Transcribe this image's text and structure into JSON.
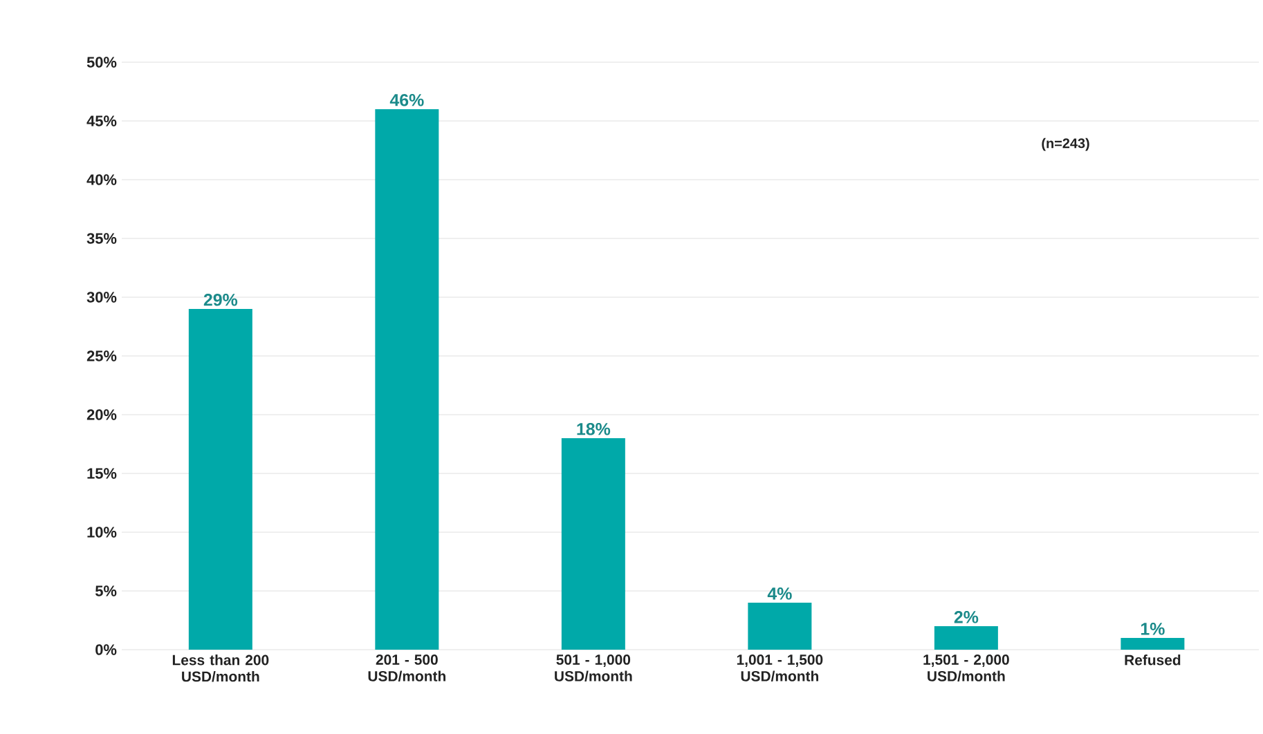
{
  "chart_data": {
    "type": "bar",
    "categories": [
      "Less than 200 USD/month",
      "201 - 500 USD/month",
      "501 - 1,000 USD/month",
      "1,001 - 1,500 USD/month",
      "1,501 - 2,000 USD/month",
      "Refused"
    ],
    "values": [
      29,
      46,
      18,
      4,
      2,
      1
    ],
    "value_labels": [
      "29%",
      "46%",
      "18%",
      "4%",
      "2%",
      "1%"
    ],
    "color": "#00a9a9",
    "ylim": [
      0,
      50
    ],
    "yticks": [
      {
        "value": 0,
        "label": "0%"
      },
      {
        "value": 5,
        "label": "5%"
      },
      {
        "value": 10,
        "label": "10%"
      },
      {
        "value": 15,
        "label": "15%"
      },
      {
        "value": 20,
        "label": "20%"
      },
      {
        "value": 25,
        "label": "25%"
      },
      {
        "value": 30,
        "label": "30%"
      },
      {
        "value": 35,
        "label": "35%"
      },
      {
        "value": 40,
        "label": "40%"
      },
      {
        "value": 45,
        "label": "45%"
      },
      {
        "value": 50,
        "label": "50%"
      }
    ],
    "grid": "y",
    "annotations": [
      "(n=243)"
    ]
  }
}
